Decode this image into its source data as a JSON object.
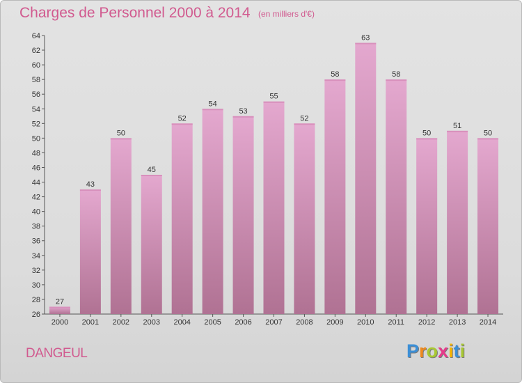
{
  "title": "Charges de Personnel 2000 à 2014",
  "subtitle": "(en milliers d'€)",
  "commune": "DANGEUL",
  "logo": {
    "letters": [
      {
        "ch": "P",
        "color": "#3c8fd6"
      },
      {
        "ch": "r",
        "color": "#f08a1c"
      },
      {
        "ch": "o",
        "color": "#a8c832"
      },
      {
        "ch": "x",
        "color": "#e63a8a"
      },
      {
        "ch": "i",
        "color": "#f5b400"
      },
      {
        "ch": "t",
        "color": "#3c8fd6"
      },
      {
        "ch": "i",
        "color": "#a8c832"
      }
    ]
  },
  "chart_data": {
    "type": "bar",
    "title": "Charges de Personnel 2000 à 2014",
    "subtitle": "(en milliers d'€)",
    "categories": [
      "2000",
      "2001",
      "2002",
      "2003",
      "2004",
      "2005",
      "2006",
      "2007",
      "2008",
      "2009",
      "2010",
      "2011",
      "2012",
      "2013",
      "2014"
    ],
    "values": [
      27,
      43,
      50,
      45,
      52,
      54,
      53,
      55,
      52,
      58,
      63,
      58,
      50,
      51,
      50
    ],
    "ylim": [
      26,
      64
    ],
    "yticks": [
      26,
      28,
      30,
      32,
      34,
      36,
      38,
      40,
      42,
      44,
      46,
      48,
      50,
      52,
      54,
      56,
      58,
      60,
      62,
      64
    ],
    "grid": false,
    "bar_color_top": "#e4a8cf",
    "bar_color_bottom": "#b07293"
  }
}
